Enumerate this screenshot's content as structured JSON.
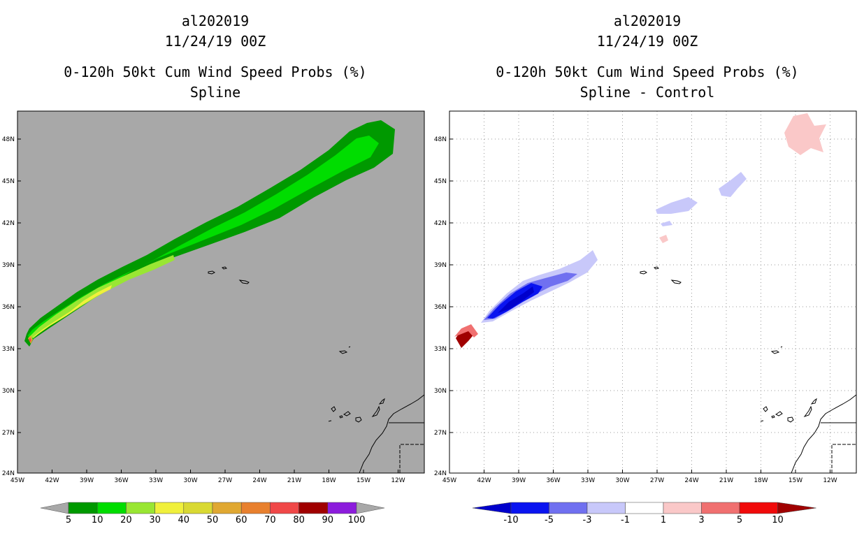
{
  "left_panel": {
    "storm_id": "al202019",
    "date": "11/24/19 00Z",
    "product": "0-120h 50kt Cum Wind Speed Probs (%)",
    "scheme": "Spline",
    "colorbar_labels": [
      "5",
      "10",
      "20",
      "30",
      "40",
      "50",
      "60",
      "70",
      "80",
      "90",
      "100"
    ],
    "colorbar_colors": [
      "#009900",
      "#00dd00",
      "#99e633",
      "#f0f03c",
      "#d9d933",
      "#e0a832",
      "#e8802e",
      "#f04848",
      "#a00000",
      "#8c1cdc"
    ]
  },
  "right_panel": {
    "storm_id": "al202019",
    "date": "11/24/19 00Z",
    "product": "0-120h 50kt Cum Wind Speed Probs (%)",
    "scheme": "Spline - Control",
    "colorbar_labels": [
      "-10",
      "-5",
      "-3",
      "-1",
      "1",
      "3",
      "5",
      "10"
    ],
    "colorbar_colors": [
      "#0000cc",
      "#0a14f0",
      "#7070f0",
      "#c8c8fa",
      "#ffffff",
      "#fac8c8",
      "#f07070",
      "#f00a0a",
      "#a00000"
    ]
  },
  "axes": {
    "lat_labels": [
      "48N",
      "45N",
      "42N",
      "39N",
      "36N",
      "33N",
      "30N",
      "27N",
      "24N"
    ],
    "lon_labels": [
      "45W",
      "42W",
      "39W",
      "36W",
      "33W",
      "30W",
      "27W",
      "24W",
      "21W",
      "18W",
      "15W",
      "12W"
    ]
  },
  "colors": {
    "ocean_gray": "#a8a8a8"
  }
}
